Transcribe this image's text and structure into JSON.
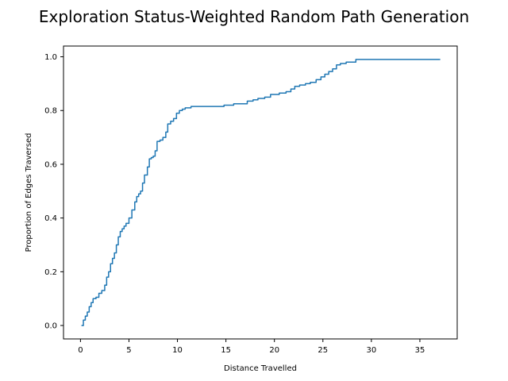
{
  "chart_data": {
    "type": "line",
    "title": "Exploration Status-Weighted Random Path Generation",
    "xlabel": "Distance Travelled",
    "ylabel": "Proportion of Edges Traversed",
    "xlim": [
      -1.75,
      38.85
    ],
    "ylim": [
      -0.05,
      1.04
    ],
    "xticks": [
      0,
      5,
      10,
      15,
      20,
      25,
      30,
      35
    ],
    "yticks": [
      0.0,
      0.2,
      0.4,
      0.6,
      0.8,
      1.0
    ],
    "ytick_labels": [
      "0.0",
      "0.2",
      "0.4",
      "0.6",
      "0.8",
      "1.0"
    ],
    "grid": false,
    "step": true,
    "series": [
      {
        "color": "#1f77b4",
        "x": [
          0.1,
          0.3,
          0.5,
          0.7,
          0.9,
          1.1,
          1.3,
          1.6,
          1.9,
          2.2,
          2.5,
          2.7,
          2.9,
          3.1,
          3.3,
          3.5,
          3.7,
          3.9,
          4.1,
          4.3,
          4.5,
          4.7,
          5.0,
          5.3,
          5.6,
          5.8,
          6.0,
          6.2,
          6.4,
          6.6,
          6.9,
          7.1,
          7.3,
          7.5,
          7.7,
          7.9,
          8.2,
          8.5,
          8.8,
          9.0,
          9.3,
          9.6,
          9.9,
          10.2,
          10.5,
          10.8,
          11.1,
          11.4,
          11.8,
          12.2,
          12.7,
          13.3,
          14.0,
          14.8,
          15.8,
          16.5,
          17.2,
          17.8,
          18.3,
          19.0,
          19.6,
          20.0,
          20.5,
          21.2,
          21.7,
          22.1,
          22.6,
          23.2,
          23.7,
          24.3,
          24.8,
          25.2,
          25.6,
          26.0,
          26.4,
          26.8,
          27.4,
          28.4,
          33.0,
          37.1
        ],
        "y": [
          0.0,
          0.02,
          0.035,
          0.05,
          0.07,
          0.085,
          0.1,
          0.105,
          0.12,
          0.13,
          0.15,
          0.18,
          0.2,
          0.23,
          0.25,
          0.27,
          0.3,
          0.33,
          0.35,
          0.36,
          0.37,
          0.38,
          0.4,
          0.43,
          0.46,
          0.48,
          0.49,
          0.5,
          0.53,
          0.56,
          0.59,
          0.62,
          0.625,
          0.63,
          0.65,
          0.685,
          0.69,
          0.7,
          0.72,
          0.75,
          0.76,
          0.77,
          0.79,
          0.8,
          0.805,
          0.81,
          0.81,
          0.815,
          0.815,
          0.815,
          0.815,
          0.815,
          0.815,
          0.82,
          0.825,
          0.825,
          0.835,
          0.84,
          0.845,
          0.85,
          0.86,
          0.86,
          0.865,
          0.87,
          0.88,
          0.89,
          0.895,
          0.9,
          0.905,
          0.915,
          0.925,
          0.935,
          0.945,
          0.955,
          0.97,
          0.975,
          0.98,
          0.99,
          0.99,
          0.99
        ]
      }
    ]
  }
}
